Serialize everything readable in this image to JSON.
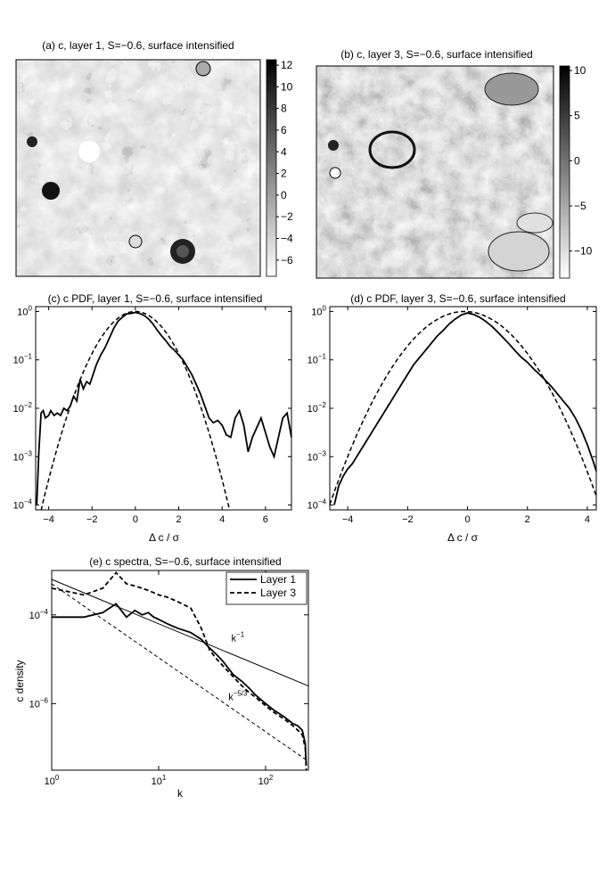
{
  "chart_data": [
    {
      "type": "heatmap",
      "title": "(a) c, layer 1, S=−0.6, surface intensified",
      "xlabel": "",
      "ylabel": "",
      "colorbar": {
        "ticks": [
          12,
          10,
          8,
          6,
          4,
          2,
          0,
          -2,
          -4,
          -6
        ],
        "tick_labels": [
          "12",
          "10",
          "8",
          "6",
          "4",
          "2",
          "0",
          "−2",
          "−4",
          "−6"
        ],
        "range": [
          -7.5,
          12.5
        ],
        "colormap": "gray_reversed"
      }
    },
    {
      "type": "heatmap",
      "title": "(b) c, layer 3, S=−0.6, surface intensified",
      "xlabel": "",
      "ylabel": "",
      "colorbar": {
        "ticks": [
          10,
          5,
          0,
          -5,
          -10
        ],
        "tick_labels": [
          "10",
          "5",
          "0",
          "−5",
          "−10"
        ],
        "range": [
          -13,
          10.5
        ],
        "colormap": "gray_reversed"
      }
    },
    {
      "type": "line",
      "title": "(c) c PDF, layer 1, S=−0.6, surface intensified",
      "xlabel": "Δ c / σ",
      "ylabel": "",
      "yscale": "log",
      "xlim": [
        -4.6,
        7.2
      ],
      "ylim_exp": [
        -4.1,
        0.1
      ],
      "xticks": [
        -4,
        -2,
        0,
        2,
        4,
        6
      ],
      "xtick_labels": [
        "−4",
        "−2",
        "0",
        "2",
        "4",
        "6"
      ],
      "yticks_exp": [
        0,
        -1,
        -2,
        -3,
        -4
      ],
      "ytick_labels": [
        "10^0",
        "10^−1",
        "10^−2",
        "10^−3",
        "10^−4"
      ],
      "series": [
        {
          "style": "solid",
          "x": [
            -4.55,
            -4.45,
            -4.35,
            -4.25,
            -4.15,
            -4.0,
            -3.9,
            -3.75,
            -3.6,
            -3.45,
            -3.3,
            -3.15,
            -3.0,
            -2.85,
            -2.7,
            -2.55,
            -2.4,
            -2.25,
            -2.1,
            -1.95,
            -1.8,
            -1.6,
            -1.4,
            -1.2,
            -1.0,
            -0.8,
            -0.6,
            -0.4,
            -0.2,
            0.0,
            0.2,
            0.4,
            0.6,
            0.8,
            1.0,
            1.2,
            1.4,
            1.6,
            1.8,
            2.0,
            2.2,
            2.4,
            2.6,
            2.8,
            3.0,
            3.2,
            3.4,
            3.6,
            3.8,
            4.0,
            4.2,
            4.4,
            4.6,
            4.8,
            5.0,
            5.2,
            5.4,
            5.6,
            5.8,
            6.0,
            6.2,
            6.4,
            6.6,
            6.8,
            7.0,
            7.2
          ],
          "y_exp": [
            -4.0,
            -2.9,
            -2.1,
            -2.05,
            -2.2,
            -2.15,
            -2.05,
            -2.15,
            -2.1,
            -2.15,
            -2.0,
            -2.05,
            -1.95,
            -1.75,
            -1.85,
            -1.4,
            -1.6,
            -1.45,
            -1.5,
            -1.3,
            -1.1,
            -0.9,
            -0.75,
            -0.55,
            -0.35,
            -0.2,
            -0.12,
            -0.05,
            -0.04,
            -0.02,
            -0.04,
            -0.08,
            -0.15,
            -0.25,
            -0.38,
            -0.5,
            -0.6,
            -0.72,
            -0.8,
            -0.9,
            -1.0,
            -1.15,
            -1.3,
            -1.5,
            -1.7,
            -1.95,
            -2.2,
            -2.3,
            -2.25,
            -2.35,
            -2.55,
            -2.6,
            -2.2,
            -2.05,
            -2.35,
            -2.9,
            -2.6,
            -2.4,
            -2.2,
            -2.5,
            -2.8,
            -3.0,
            -2.6,
            -2.2,
            -2.1,
            -2.6
          ]
        },
        {
          "style": "dashed",
          "gaussian_fit": true,
          "mu": 0.0,
          "sigma_fit": 1.0,
          "peak_exp": 0.0
        }
      ]
    },
    {
      "type": "line",
      "title": "(d) c PDF, layer 3, S=−0.6, surface intensified",
      "xlabel": "Δ c / σ",
      "ylabel": "",
      "yscale": "log",
      "xlim": [
        -4.6,
        4.3
      ],
      "ylim_exp": [
        -4.1,
        0.1
      ],
      "xticks": [
        -4,
        -2,
        0,
        2,
        4
      ],
      "xtick_labels": [
        "−4",
        "−2",
        "0",
        "2",
        "4"
      ],
      "yticks_exp": [
        0,
        -1,
        -2,
        -3,
        -4
      ],
      "ytick_labels": [
        "10^0",
        "10^−1",
        "10^−2",
        "10^−3",
        "10^−4"
      ],
      "series": [
        {
          "style": "solid",
          "x": [
            -4.45,
            -4.3,
            -4.15,
            -4.0,
            -3.85,
            -3.7,
            -3.55,
            -3.4,
            -3.25,
            -3.1,
            -2.95,
            -2.8,
            -2.6,
            -2.4,
            -2.2,
            -2.0,
            -1.8,
            -1.6,
            -1.4,
            -1.2,
            -1.0,
            -0.8,
            -0.6,
            -0.4,
            -0.2,
            0.0,
            0.2,
            0.4,
            0.6,
            0.8,
            1.0,
            1.2,
            1.4,
            1.6,
            1.8,
            2.0,
            2.2,
            2.4,
            2.6,
            2.8,
            3.0,
            3.2,
            3.4,
            3.6,
            3.8,
            4.0,
            4.2,
            4.3
          ],
          "y_exp": [
            -4.0,
            -3.6,
            -3.4,
            -3.25,
            -3.15,
            -3.0,
            -2.85,
            -2.7,
            -2.55,
            -2.4,
            -2.25,
            -2.1,
            -1.9,
            -1.7,
            -1.5,
            -1.3,
            -1.1,
            -0.95,
            -0.8,
            -0.65,
            -0.5,
            -0.38,
            -0.25,
            -0.15,
            -0.07,
            -0.03,
            -0.06,
            -0.12,
            -0.2,
            -0.3,
            -0.42,
            -0.55,
            -0.68,
            -0.82,
            -0.95,
            -1.05,
            -1.18,
            -1.3,
            -1.42,
            -1.55,
            -1.7,
            -1.85,
            -2.0,
            -2.2,
            -2.45,
            -2.75,
            -3.1,
            -3.3
          ]
        },
        {
          "style": "dashed",
          "gaussian_fit": true,
          "mu": -0.1,
          "sigma_fit": 1.05,
          "peak_exp": 0.0
        }
      ]
    },
    {
      "type": "line",
      "title": "(e) c spectra, S=−0.6, surface intensified",
      "xlabel": "k",
      "ylabel": "c density",
      "xscale": "log",
      "yscale": "log",
      "xlim_exp": [
        0,
        2.4
      ],
      "ylim_exp": [
        -7.5,
        -3.0
      ],
      "xticks_exp": [
        0,
        1,
        2
      ],
      "xtick_labels": [
        "10^0",
        "10^1",
        "10^2"
      ],
      "yticks_exp": [
        -4,
        -6
      ],
      "ytick_labels": [
        "10^−4",
        "10^−6"
      ],
      "legend": {
        "position": "top-right",
        "entries": [
          "Layer 1",
          "Layer 3"
        ]
      },
      "annotations": [
        {
          "text": "k",
          "exponent": "−1",
          "x": 55,
          "y": 2.5e-05
        },
        {
          "text": "k",
          "exponent": "−5/3",
          "x": 55,
          "y": 1.2e-06
        }
      ],
      "series": [
        {
          "name": "Layer 1",
          "style": "solid",
          "k": [
            1,
            2,
            3,
            4,
            5,
            6,
            7,
            8,
            9,
            10,
            12,
            15,
            20,
            25,
            30,
            35,
            40,
            50,
            60,
            70,
            80,
            100,
            120,
            150,
            180,
            200,
            220,
            235,
            240
          ],
          "y_exp": [
            -4.05,
            -4.05,
            -3.95,
            -3.75,
            -4.05,
            -3.9,
            -4.0,
            -3.95,
            -4.05,
            -4.1,
            -4.2,
            -4.3,
            -4.4,
            -4.55,
            -4.75,
            -4.9,
            -5.05,
            -5.35,
            -5.5,
            -5.65,
            -5.8,
            -6.0,
            -6.15,
            -6.3,
            -6.45,
            -6.5,
            -6.6,
            -6.9,
            -7.4
          ]
        },
        {
          "name": "Layer 3",
          "style": "dashed",
          "k": [
            1,
            2,
            3,
            4,
            5,
            6,
            7,
            8,
            9,
            10,
            12,
            15,
            20,
            25,
            30,
            35,
            40,
            50,
            60,
            70,
            80,
            100,
            120,
            150,
            180,
            200,
            220,
            235,
            240
          ],
          "y_exp": [
            -3.4,
            -3.55,
            -3.4,
            -3.05,
            -3.3,
            -3.35,
            -3.4,
            -3.45,
            -3.5,
            -3.55,
            -3.6,
            -3.7,
            -3.85,
            -4.3,
            -4.8,
            -5.0,
            -5.15,
            -5.4,
            -5.6,
            -5.75,
            -5.85,
            -6.05,
            -6.2,
            -6.35,
            -6.5,
            -6.6,
            -6.7,
            -7.0,
            -7.5
          ]
        },
        {
          "name": "k^-1 reference",
          "style": "thin-solid",
          "k": [
            1,
            250
          ],
          "y_exp": [
            -3.2,
            -5.6
          ]
        },
        {
          "name": "k^-5/3 reference",
          "style": "thin-dashed",
          "k": [
            1,
            250
          ],
          "y_exp": [
            -3.3,
            -7.3
          ]
        }
      ]
    }
  ]
}
